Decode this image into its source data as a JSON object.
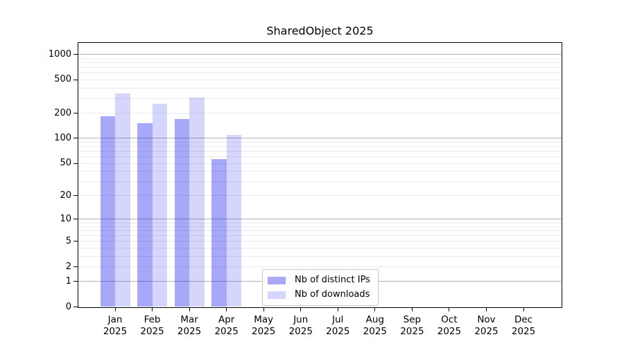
{
  "figure": {
    "title": "SharedObject 2025"
  },
  "chart_data": {
    "type": "bar",
    "title": "SharedObject 2025",
    "scale": "symlog (y proportional to log(1+value))",
    "year": "2025",
    "categories": [
      "Jan",
      "Feb",
      "Mar",
      "Apr",
      "May",
      "Jun",
      "Jul",
      "Aug",
      "Sep",
      "Oct",
      "Nov",
      "Dec"
    ],
    "series": [
      {
        "name": "Nb of distinct IPs",
        "color": "rgba(0,0,238,0.34)",
        "values": [
          185,
          153,
          172,
          56,
          0,
          0,
          0,
          0,
          0,
          0,
          0,
          0
        ]
      },
      {
        "name": "Nb of downloads",
        "color": "rgba(0,0,238,0.16)",
        "values": [
          345,
          262,
          310,
          109,
          0,
          0,
          0,
          0,
          0,
          0,
          0,
          0
        ]
      }
    ],
    "y_ticks": [
      0,
      1,
      2,
      5,
      10,
      20,
      50,
      100,
      200,
      500,
      1000
    ],
    "ylim": [
      0,
      1380
    ],
    "grid": {
      "major_lines": [
        1,
        10,
        100,
        1000
      ],
      "major_color": "#b4b4b4",
      "minor_color": "#ebebeb"
    },
    "axis_color": "#000000",
    "legend": {
      "position": "bottom-center"
    }
  }
}
